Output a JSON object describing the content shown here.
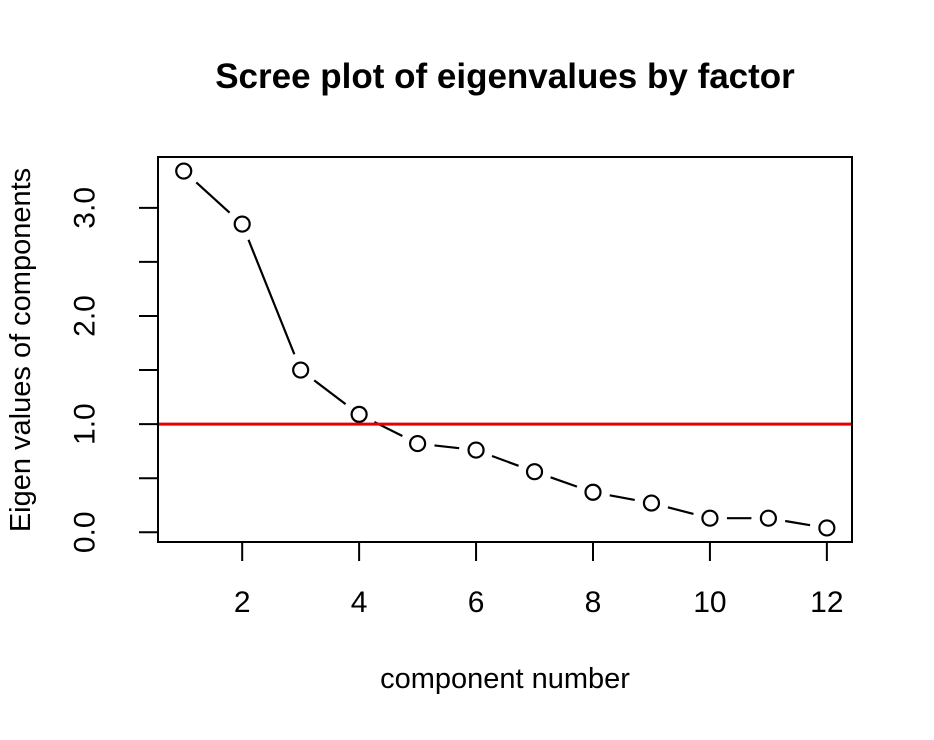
{
  "chart_data": {
    "type": "line",
    "style": "points-and-segments (R type='b')",
    "title": "Scree plot of eigenvalues by factor",
    "xlabel": "component number",
    "ylabel": "Eigen values of components",
    "x": [
      1,
      2,
      3,
      4,
      5,
      6,
      7,
      8,
      9,
      10,
      11,
      12
    ],
    "values": [
      3.34,
      2.85,
      1.5,
      1.09,
      0.82,
      0.76,
      0.56,
      0.37,
      0.27,
      0.13,
      0.13,
      0.04
    ],
    "marker": "open-circle",
    "reference_line": {
      "orientation": "horizontal",
      "y": 1.0,
      "color": "#e60000"
    },
    "xlim": [
      0.56,
      12.43
    ],
    "ylim": [
      -0.09,
      3.47
    ],
    "x_ticks": [
      2,
      4,
      6,
      8,
      10,
      12
    ],
    "x_tick_labels": [
      "2",
      "4",
      "6",
      "8",
      "10",
      "12"
    ],
    "y_ticks": [
      0,
      0.5,
      1,
      1.5,
      2,
      2.5,
      3
    ],
    "y_tick_labels": [
      "0.0",
      "",
      "1.0",
      "",
      "2.0",
      "",
      "3.0"
    ],
    "grid": false,
    "legend": "none",
    "colors": {
      "line": "#000000",
      "marker": "#000000",
      "box": "#000000",
      "text": "#000000",
      "background": "#ffffff"
    }
  }
}
